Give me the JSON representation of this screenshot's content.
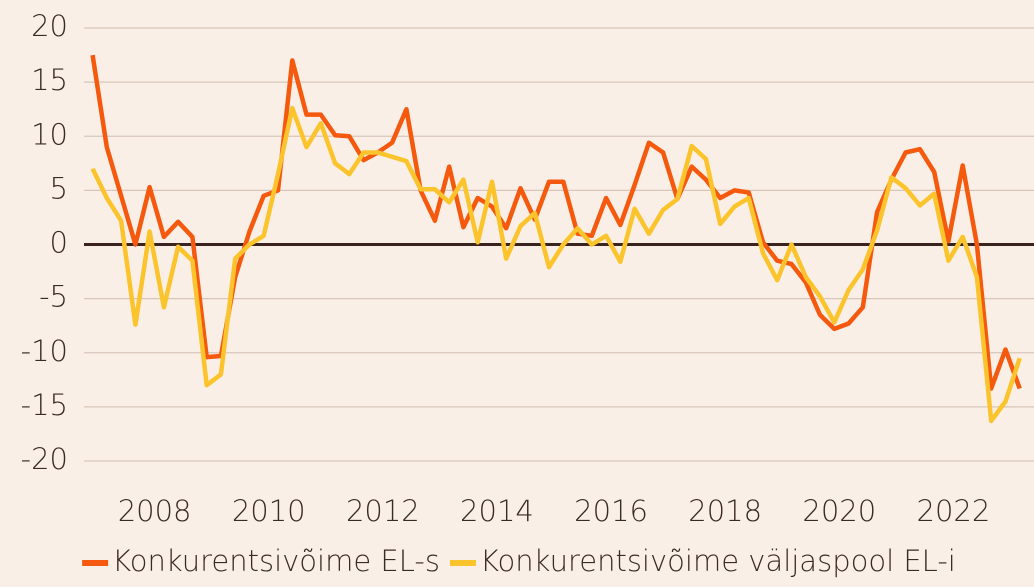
{
  "chart_data": {
    "type": "line",
    "x": [
      2007,
      2007.25,
      2007.5,
      2007.75,
      2008,
      2008.25,
      2008.5,
      2008.75,
      2009,
      2009.25,
      2009.5,
      2009.75,
      2010,
      2010.25,
      2010.5,
      2010.75,
      2011,
      2011.25,
      2011.5,
      2011.75,
      2012,
      2012.25,
      2012.5,
      2012.75,
      2013,
      2013.25,
      2013.5,
      2013.75,
      2014,
      2014.25,
      2014.5,
      2014.75,
      2015,
      2015.25,
      2015.5,
      2015.75,
      2016,
      2016.25,
      2016.5,
      2016.75,
      2017,
      2017.25,
      2017.5,
      2017.75,
      2018,
      2018.25,
      2018.5,
      2018.75,
      2019,
      2019.25,
      2019.5,
      2019.75,
      2020,
      2020.25,
      2020.5,
      2020.75,
      2021,
      2021.25,
      2021.5,
      2021.75,
      2022,
      2022.25,
      2022.5,
      2022.75,
      2023,
      2023.25
    ],
    "series": [
      {
        "name": "Konkurentsivõime EL-s",
        "color": "#f5590d",
        "values": [
          17.5,
          9,
          4.5,
          0,
          5.3,
          0.7,
          2.1,
          0.7,
          -10.4,
          -10.3,
          -3,
          1.2,
          4.5,
          5,
          17,
          12,
          12,
          10.1,
          10,
          7.8,
          8.5,
          9.4,
          12.5,
          5,
          2.2,
          7.2,
          1.6,
          4.3,
          3.5,
          1.5,
          5.2,
          2.3,
          5.8,
          5.8,
          1,
          0.8,
          4.3,
          1.8,
          5.5,
          9.4,
          8.5,
          4.2,
          7.2,
          6,
          4.3,
          5,
          4.8,
          0.2,
          -1.5,
          -1.8,
          -3.5,
          -6.5,
          -7.8,
          -7.3,
          -5.8,
          3,
          6,
          8.5,
          8.8,
          6.7,
          0.3,
          7.3,
          0,
          -13.3,
          -9.7,
          -13.3
        ]
      },
      {
        "name": "Konkurentsivõime väljaspool EL-i",
        "color": "#fcc42c",
        "values": [
          7,
          4.3,
          2.2,
          -7.4,
          1.2,
          -5.8,
          -0.2,
          -1.5,
          -13,
          -12,
          -1.3,
          0,
          0.8,
          6.5,
          12.6,
          9,
          11.2,
          7.5,
          6.5,
          8.5,
          8.5,
          8.1,
          7.7,
          5.1,
          5.1,
          3.9,
          6,
          0.2,
          5.8,
          -1.3,
          1.7,
          2.9,
          -2.1,
          0,
          1.5,
          0,
          0.8,
          -1.6,
          3.3,
          1,
          3.2,
          4.2,
          9.1,
          7.9,
          1.9,
          3.5,
          4.3,
          -0.8,
          -3.3,
          0,
          -3,
          -4.8,
          -7.2,
          -4.2,
          -2.3,
          1.3,
          6.2,
          5.2,
          3.6,
          4.7,
          -1.5,
          0.7,
          -3,
          -16.3,
          -14.5,
          -10.5
        ]
      }
    ],
    "xlim": [
      2006.85,
      2023.5
    ],
    "xticks": [
      2008,
      2010,
      2012,
      2014,
      2016,
      2018,
      2020,
      2022
    ],
    "ylim": [
      -20,
      20
    ],
    "yticks": [
      -20,
      -15,
      -10,
      -5,
      0,
      5,
      10,
      15,
      20
    ],
    "grid": true,
    "legend": "bottom"
  }
}
